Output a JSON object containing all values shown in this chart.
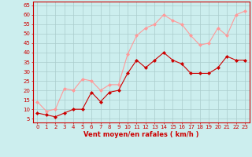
{
  "x": [
    0,
    1,
    2,
    3,
    4,
    5,
    6,
    7,
    8,
    9,
    10,
    11,
    12,
    13,
    14,
    15,
    16,
    17,
    18,
    19,
    20,
    21,
    22,
    23
  ],
  "wind_mean": [
    8,
    7,
    6,
    8,
    10,
    10,
    19,
    14,
    19,
    20,
    29,
    36,
    32,
    36,
    40,
    36,
    34,
    29,
    29,
    29,
    32,
    38,
    36,
    36
  ],
  "wind_gust": [
    14,
    9,
    10,
    21,
    20,
    26,
    25,
    20,
    23,
    23,
    39,
    49,
    53,
    55,
    60,
    57,
    55,
    49,
    44,
    45,
    53,
    49,
    60,
    62
  ],
  "mean_color": "#cc0000",
  "gust_color": "#ff9999",
  "bg_color": "#cceeee",
  "grid_color": "#aacccc",
  "xlabel": "Vent moyen/en rafales ( km/h )",
  "xlabel_color": "#cc0000",
  "ylabel_ticks": [
    5,
    10,
    15,
    20,
    25,
    30,
    35,
    40,
    45,
    50,
    55,
    60,
    65
  ],
  "ylim": [
    3,
    67
  ],
  "xlim": [
    -0.5,
    23.5
  ],
  "tick_color": "#cc0000",
  "axis_color": "#cc0000",
  "tick_fontsize": 5.0,
  "xlabel_fontsize": 6.0
}
